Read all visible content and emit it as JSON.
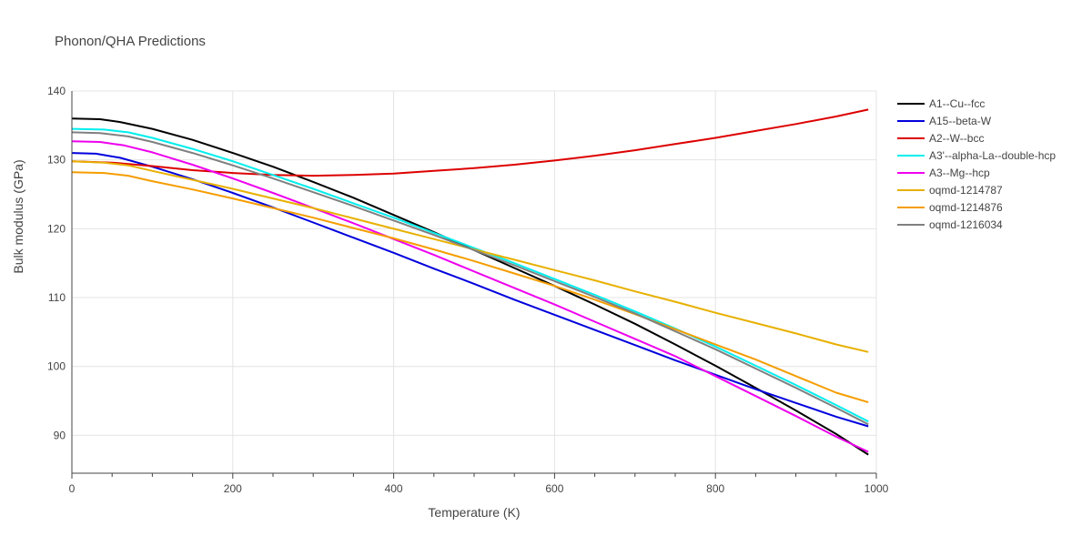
{
  "chart_data": {
    "type": "line",
    "title": "Phonon/QHA Predictions",
    "xlabel": "Temperature (K)",
    "ylabel": "Bulk modulus (GPa)",
    "xlim": [
      0,
      1000
    ],
    "ylim": [
      84.5,
      140
    ],
    "x_ticks": [
      0,
      200,
      400,
      600,
      800,
      1000
    ],
    "y_ticks": [
      90,
      100,
      110,
      120,
      130,
      140
    ],
    "grid": true,
    "legend_position": "right",
    "series": [
      {
        "name": "A1--Cu--fcc",
        "color": "#000000",
        "points": [
          [
            0,
            136
          ],
          [
            35,
            135.9
          ],
          [
            60,
            135.5
          ],
          [
            100,
            134.5
          ],
          [
            150,
            132.9
          ],
          [
            200,
            131
          ],
          [
            250,
            129
          ],
          [
            300,
            126.8
          ],
          [
            350,
            124.5
          ],
          [
            400,
            122
          ],
          [
            450,
            119.5
          ],
          [
            500,
            116.9
          ],
          [
            550,
            114.3
          ],
          [
            600,
            111.7
          ],
          [
            650,
            109
          ],
          [
            700,
            106.2
          ],
          [
            750,
            103.2
          ],
          [
            800,
            100.1
          ],
          [
            850,
            96.9
          ],
          [
            900,
            93.6
          ],
          [
            950,
            90.2
          ],
          [
            990,
            87.2
          ]
        ]
      },
      {
        "name": "A15--beta-W",
        "color": "#0000dd",
        "points": [
          [
            0,
            131
          ],
          [
            30,
            130.9
          ],
          [
            60,
            130.3
          ],
          [
            100,
            129
          ],
          [
            150,
            127.2
          ],
          [
            200,
            125.2
          ],
          [
            250,
            123.1
          ],
          [
            300,
            120.9
          ],
          [
            350,
            118.7
          ],
          [
            400,
            116.5
          ],
          [
            450,
            114.2
          ],
          [
            500,
            112
          ],
          [
            550,
            109.7
          ],
          [
            600,
            107.5
          ],
          [
            650,
            105.3
          ],
          [
            700,
            103.1
          ],
          [
            750,
            100.9
          ],
          [
            800,
            98.8
          ],
          [
            850,
            96.7
          ],
          [
            900,
            94.7
          ],
          [
            950,
            92.7
          ],
          [
            990,
            91.3
          ]
        ]
      },
      {
        "name": "A2--W--bcc",
        "color": "#dd0000",
        "points": [
          [
            0,
            129.8
          ],
          [
            50,
            129.6
          ],
          [
            100,
            129.1
          ],
          [
            150,
            128.5
          ],
          [
            200,
            128.1
          ],
          [
            250,
            127.8
          ],
          [
            300,
            127.7
          ],
          [
            350,
            127.8
          ],
          [
            400,
            128
          ],
          [
            450,
            128.4
          ],
          [
            500,
            128.8
          ],
          [
            550,
            129.3
          ],
          [
            600,
            129.9
          ],
          [
            650,
            130.6
          ],
          [
            700,
            131.4
          ],
          [
            750,
            132.3
          ],
          [
            800,
            133.2
          ],
          [
            850,
            134.2
          ],
          [
            900,
            135.2
          ],
          [
            950,
            136.3
          ],
          [
            990,
            137.3
          ]
        ]
      },
      {
        "name": "A3'--alpha-La--double-hcp",
        "color": "#00eeee",
        "points": [
          [
            0,
            134.5
          ],
          [
            40,
            134.4
          ],
          [
            70,
            134
          ],
          [
            100,
            133.2
          ],
          [
            150,
            131.6
          ],
          [
            200,
            129.8
          ],
          [
            250,
            127.8
          ],
          [
            300,
            125.8
          ],
          [
            350,
            123.7
          ],
          [
            400,
            121.6
          ],
          [
            450,
            119.4
          ],
          [
            500,
            117.2
          ],
          [
            550,
            115
          ],
          [
            600,
            112.7
          ],
          [
            650,
            110.4
          ],
          [
            700,
            108
          ],
          [
            750,
            105.5
          ],
          [
            800,
            102.9
          ],
          [
            850,
            100.1
          ],
          [
            900,
            97.3
          ],
          [
            950,
            94.4
          ],
          [
            990,
            92
          ]
        ]
      },
      {
        "name": "A3--Mg--hcp",
        "color": "#ee00ee",
        "points": [
          [
            0,
            132.7
          ],
          [
            35,
            132.6
          ],
          [
            65,
            132.1
          ],
          [
            100,
            131.1
          ],
          [
            150,
            129.3
          ],
          [
            200,
            127.3
          ],
          [
            250,
            125.2
          ],
          [
            300,
            123
          ],
          [
            350,
            120.8
          ],
          [
            400,
            118.5
          ],
          [
            450,
            116.2
          ],
          [
            500,
            113.8
          ],
          [
            550,
            111.4
          ],
          [
            600,
            109
          ],
          [
            650,
            106.5
          ],
          [
            700,
            104
          ],
          [
            750,
            101.5
          ],
          [
            800,
            98.6
          ],
          [
            850,
            95.7
          ],
          [
            900,
            92.8
          ],
          [
            950,
            89.8
          ],
          [
            990,
            87.6
          ]
        ]
      },
      {
        "name": "oqmd-1214787",
        "color": "#e8b000",
        "points": [
          [
            0,
            129.8
          ],
          [
            40,
            129.6
          ],
          [
            70,
            129.2
          ],
          [
            100,
            128.4
          ],
          [
            150,
            127.1
          ],
          [
            200,
            125.8
          ],
          [
            250,
            124.4
          ],
          [
            300,
            123
          ],
          [
            350,
            121.5
          ],
          [
            400,
            120
          ],
          [
            450,
            118.5
          ],
          [
            500,
            117
          ],
          [
            550,
            115.5
          ],
          [
            600,
            114
          ],
          [
            650,
            112.5
          ],
          [
            700,
            110.9
          ],
          [
            750,
            109.4
          ],
          [
            800,
            107.8
          ],
          [
            850,
            106.3
          ],
          [
            900,
            104.8
          ],
          [
            950,
            103.2
          ],
          [
            990,
            102.1
          ]
        ]
      },
      {
        "name": "oqmd-1214876",
        "color": "#f59d00",
        "points": [
          [
            0,
            128.2
          ],
          [
            40,
            128.1
          ],
          [
            70,
            127.7
          ],
          [
            100,
            126.9
          ],
          [
            150,
            125.7
          ],
          [
            200,
            124.4
          ],
          [
            250,
            123
          ],
          [
            300,
            121.6
          ],
          [
            350,
            120.1
          ],
          [
            400,
            118.6
          ],
          [
            450,
            117
          ],
          [
            500,
            115.3
          ],
          [
            550,
            113.5
          ],
          [
            600,
            111.7
          ],
          [
            650,
            109.7
          ],
          [
            700,
            107.6
          ],
          [
            750,
            105.4
          ],
          [
            800,
            103.2
          ],
          [
            850,
            101
          ],
          [
            900,
            98.6
          ],
          [
            950,
            96.2
          ],
          [
            990,
            94.8
          ]
        ]
      },
      {
        "name": "oqmd-1216034",
        "color": "#808080",
        "points": [
          [
            0,
            134
          ],
          [
            35,
            133.9
          ],
          [
            70,
            133.4
          ],
          [
            100,
            132.6
          ],
          [
            150,
            131
          ],
          [
            200,
            129.2
          ],
          [
            250,
            127.3
          ],
          [
            300,
            125.3
          ],
          [
            350,
            123.3
          ],
          [
            400,
            121.2
          ],
          [
            450,
            119.1
          ],
          [
            500,
            116.9
          ],
          [
            550,
            114.7
          ],
          [
            600,
            112.4
          ],
          [
            650,
            110.1
          ],
          [
            700,
            107.7
          ],
          [
            750,
            105.1
          ],
          [
            800,
            102.5
          ],
          [
            850,
            99.7
          ],
          [
            900,
            96.9
          ],
          [
            950,
            94
          ],
          [
            990,
            91.6
          ]
        ]
      }
    ]
  }
}
